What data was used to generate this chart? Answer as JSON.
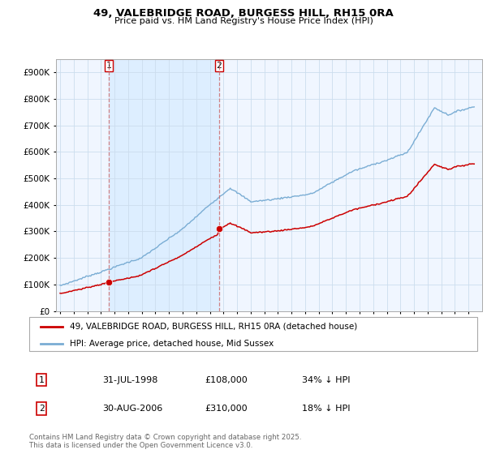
{
  "title_line1": "49, VALEBRIDGE ROAD, BURGESS HILL, RH15 0RA",
  "title_line2": "Price paid vs. HM Land Registry's House Price Index (HPI)",
  "legend_label_red": "49, VALEBRIDGE ROAD, BURGESS HILL, RH15 0RA (detached house)",
  "legend_label_blue": "HPI: Average price, detached house, Mid Sussex",
  "sale1_date": "31-JUL-1998",
  "sale1_price": "£108,000",
  "sale1_hpi": "34% ↓ HPI",
  "sale2_date": "30-AUG-2006",
  "sale2_price": "£310,000",
  "sale2_hpi": "18% ↓ HPI",
  "footer": "Contains HM Land Registry data © Crown copyright and database right 2025.\nThis data is licensed under the Open Government Licence v3.0.",
  "red_color": "#cc0000",
  "blue_color": "#7aadd4",
  "shade_color": "#ddeeff",
  "grid_color": "#ccddee",
  "bg_color": "#f0f6ff",
  "ylim": [
    0,
    950000
  ],
  "yticks": [
    0,
    100000,
    200000,
    300000,
    400000,
    500000,
    600000,
    700000,
    800000,
    900000
  ],
  "ytick_labels": [
    "£0",
    "£100K",
    "£200K",
    "£300K",
    "£400K",
    "£500K",
    "£600K",
    "£700K",
    "£800K",
    "£900K"
  ],
  "sale1_x": 1998.58,
  "sale1_y": 108000,
  "sale2_x": 2006.66,
  "sale2_y": 310000,
  "xlim_left": 1994.7,
  "xlim_right": 2026.0
}
